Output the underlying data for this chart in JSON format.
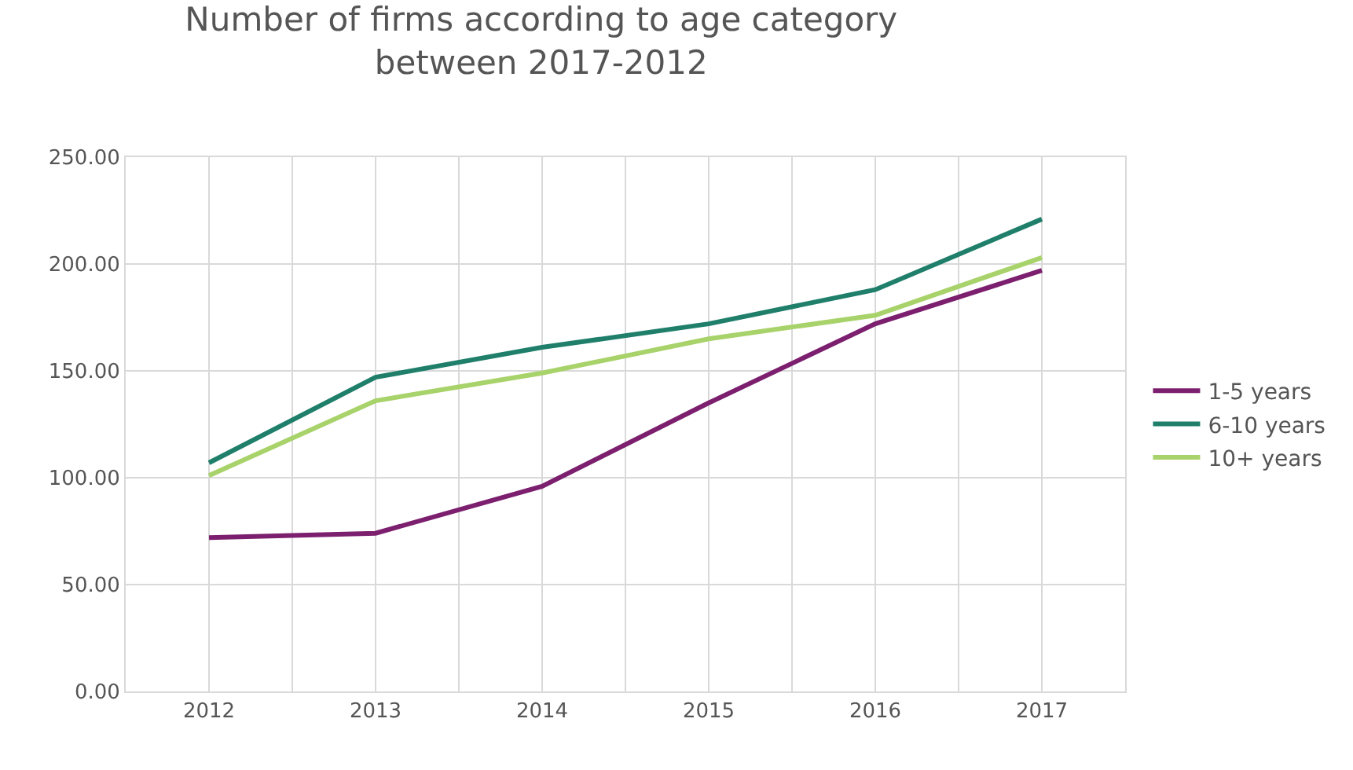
{
  "chart_data": {
    "type": "line",
    "title": "Number of firms according to age category\nbetween 2017-2012",
    "categories": [
      "2012",
      "2013",
      "2014",
      "2015",
      "2016",
      "2017"
    ],
    "series": [
      {
        "name": "1-5 years",
        "color": "#7b1f6e",
        "values": [
          72,
          74,
          96,
          135,
          172,
          197
        ]
      },
      {
        "name": "6-10 years",
        "color": "#1f7f6a",
        "values": [
          107,
          147,
          161,
          172,
          188,
          221
        ]
      },
      {
        "name": "10+ years",
        "color": "#a8d26a",
        "values": [
          101,
          136,
          149,
          165,
          176,
          203
        ]
      }
    ],
    "ylim": [
      0,
      250
    ],
    "yticks": [
      {
        "value": 0,
        "label": "0.00"
      },
      {
        "value": 50,
        "label": "50.00"
      },
      {
        "value": 100,
        "label": "100.00"
      },
      {
        "value": 150,
        "label": "150.00"
      },
      {
        "value": 200,
        "label": "200.00"
      },
      {
        "value": 250,
        "label": "250.00"
      }
    ],
    "grid": true,
    "legend": "right",
    "marker": "none",
    "line_style": "solid"
  }
}
